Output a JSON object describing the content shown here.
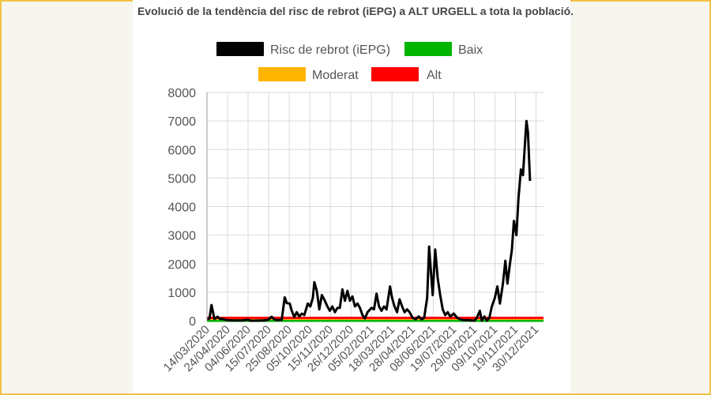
{
  "chart_data": {
    "type": "line",
    "title": "Evolució de la tendència del risc de rebrot (iEPG) a ALT URGELL a tota la població.",
    "xlabel": "",
    "ylabel": "",
    "ylim": [
      0,
      8000
    ],
    "yticks": [
      0,
      1000,
      2000,
      3000,
      4000,
      5000,
      6000,
      7000,
      8000
    ],
    "x_start": "14/03/2020",
    "x_end": "14/01/2022",
    "xticks": [
      "14/03/2020",
      "24/04/2020",
      "04/06/2020",
      "15/07/2020",
      "25/08/2020",
      "05/10/2020",
      "15/11/2020",
      "26/12/2020",
      "05/02/2021",
      "18/03/2021",
      "28/04/2021",
      "08/06/2021",
      "19/07/2021",
      "29/08/2021",
      "09/10/2021",
      "19/11/2021",
      "30/12/2021"
    ],
    "grid": true,
    "legend_placement": "top",
    "series": [
      {
        "name": "Risc de rebrot (iEPG)",
        "color": "#000000",
        "points": [
          [
            "2020-03-14",
            50
          ],
          [
            "2020-03-19",
            80
          ],
          [
            "2020-03-23",
            550
          ],
          [
            "2020-03-26",
            300
          ],
          [
            "2020-03-29",
            60
          ],
          [
            "2020-04-04",
            140
          ],
          [
            "2020-04-09",
            60
          ],
          [
            "2020-04-14",
            60
          ],
          [
            "2020-04-19",
            40
          ],
          [
            "2020-04-24",
            20
          ],
          [
            "2020-05-04",
            10
          ],
          [
            "2020-05-24",
            10
          ],
          [
            "2020-06-04",
            40
          ],
          [
            "2020-06-09",
            0
          ],
          [
            "2020-06-14",
            0
          ],
          [
            "2020-07-04",
            10
          ],
          [
            "2020-07-14",
            30
          ],
          [
            "2020-07-21",
            140
          ],
          [
            "2020-07-26",
            50
          ],
          [
            "2020-08-01",
            20
          ],
          [
            "2020-08-10",
            30
          ],
          [
            "2020-08-16",
            820
          ],
          [
            "2020-08-20",
            620
          ],
          [
            "2020-08-26",
            600
          ],
          [
            "2020-08-30",
            350
          ],
          [
            "2020-09-04",
            130
          ],
          [
            "2020-09-09",
            300
          ],
          [
            "2020-09-14",
            150
          ],
          [
            "2020-09-19",
            250
          ],
          [
            "2020-09-24",
            200
          ],
          [
            "2020-10-01",
            600
          ],
          [
            "2020-10-06",
            500
          ],
          [
            "2020-10-11",
            800
          ],
          [
            "2020-10-14",
            1350
          ],
          [
            "2020-10-19",
            1050
          ],
          [
            "2020-10-24",
            400
          ],
          [
            "2020-10-29",
            900
          ],
          [
            "2020-11-04",
            700
          ],
          [
            "2020-11-09",
            500
          ],
          [
            "2020-11-14",
            350
          ],
          [
            "2020-11-19",
            500
          ],
          [
            "2020-11-24",
            300
          ],
          [
            "2020-11-29",
            450
          ],
          [
            "2020-12-04",
            450
          ],
          [
            "2020-12-09",
            1100
          ],
          [
            "2020-12-14",
            700
          ],
          [
            "2020-12-19",
            1050
          ],
          [
            "2020-12-24",
            700
          ],
          [
            "2020-12-29",
            850
          ],
          [
            "2021-01-03",
            500
          ],
          [
            "2021-01-08",
            600
          ],
          [
            "2021-01-13",
            450
          ],
          [
            "2021-01-18",
            200
          ],
          [
            "2021-01-23",
            80
          ],
          [
            "2021-01-28",
            300
          ],
          [
            "2021-02-05",
            450
          ],
          [
            "2021-02-10",
            400
          ],
          [
            "2021-02-15",
            950
          ],
          [
            "2021-02-20",
            500
          ],
          [
            "2021-02-25",
            350
          ],
          [
            "2021-03-02",
            500
          ],
          [
            "2021-03-07",
            400
          ],
          [
            "2021-03-14",
            1200
          ],
          [
            "2021-03-18",
            800
          ],
          [
            "2021-03-23",
            500
          ],
          [
            "2021-03-28",
            300
          ],
          [
            "2021-04-02",
            750
          ],
          [
            "2021-04-07",
            500
          ],
          [
            "2021-04-12",
            300
          ],
          [
            "2021-04-17",
            400
          ],
          [
            "2021-04-22",
            300
          ],
          [
            "2021-04-28",
            100
          ],
          [
            "2021-05-04",
            50
          ],
          [
            "2021-05-10",
            150
          ],
          [
            "2021-05-16",
            50
          ],
          [
            "2021-05-21",
            100
          ],
          [
            "2021-05-27",
            800
          ],
          [
            "2021-05-31",
            2600
          ],
          [
            "2021-06-04",
            1600
          ],
          [
            "2021-06-07",
            900
          ],
          [
            "2021-06-12",
            2500
          ],
          [
            "2021-06-17",
            1500
          ],
          [
            "2021-06-22",
            900
          ],
          [
            "2021-06-27",
            400
          ],
          [
            "2021-07-02",
            200
          ],
          [
            "2021-07-07",
            300
          ],
          [
            "2021-07-12",
            150
          ],
          [
            "2021-07-19",
            250
          ],
          [
            "2021-07-26",
            100
          ],
          [
            "2021-08-01",
            50
          ],
          [
            "2021-08-08",
            20
          ],
          [
            "2021-08-18",
            20
          ],
          [
            "2021-08-29",
            0
          ],
          [
            "2021-09-03",
            100
          ],
          [
            "2021-09-09",
            350
          ],
          [
            "2021-09-13",
            0
          ],
          [
            "2021-09-18",
            150
          ],
          [
            "2021-09-23",
            0
          ],
          [
            "2021-09-28",
            100
          ],
          [
            "2021-10-03",
            500
          ],
          [
            "2021-10-09",
            800
          ],
          [
            "2021-10-14",
            1200
          ],
          [
            "2021-10-19",
            600
          ],
          [
            "2021-10-25",
            1300
          ],
          [
            "2021-10-30",
            2100
          ],
          [
            "2021-11-03",
            1300
          ],
          [
            "2021-11-08",
            2000
          ],
          [
            "2021-11-12",
            2500
          ],
          [
            "2021-11-16",
            3500
          ],
          [
            "2021-11-21",
            3000
          ],
          [
            "2021-11-25",
            4300
          ],
          [
            "2021-11-30",
            5300
          ],
          [
            "2021-12-04",
            5100
          ],
          [
            "2021-12-08",
            6200
          ],
          [
            "2021-12-11",
            7000
          ],
          [
            "2021-12-14",
            6600
          ],
          [
            "2021-12-18",
            4900
          ]
        ]
      },
      {
        "name": "Baix",
        "color": "#00b400",
        "constant": 0
      },
      {
        "name": "Moderat",
        "color": "#ffb400",
        "constant": 70
      },
      {
        "name": "Alt",
        "color": "#ff0000",
        "constant": 100
      }
    ]
  }
}
